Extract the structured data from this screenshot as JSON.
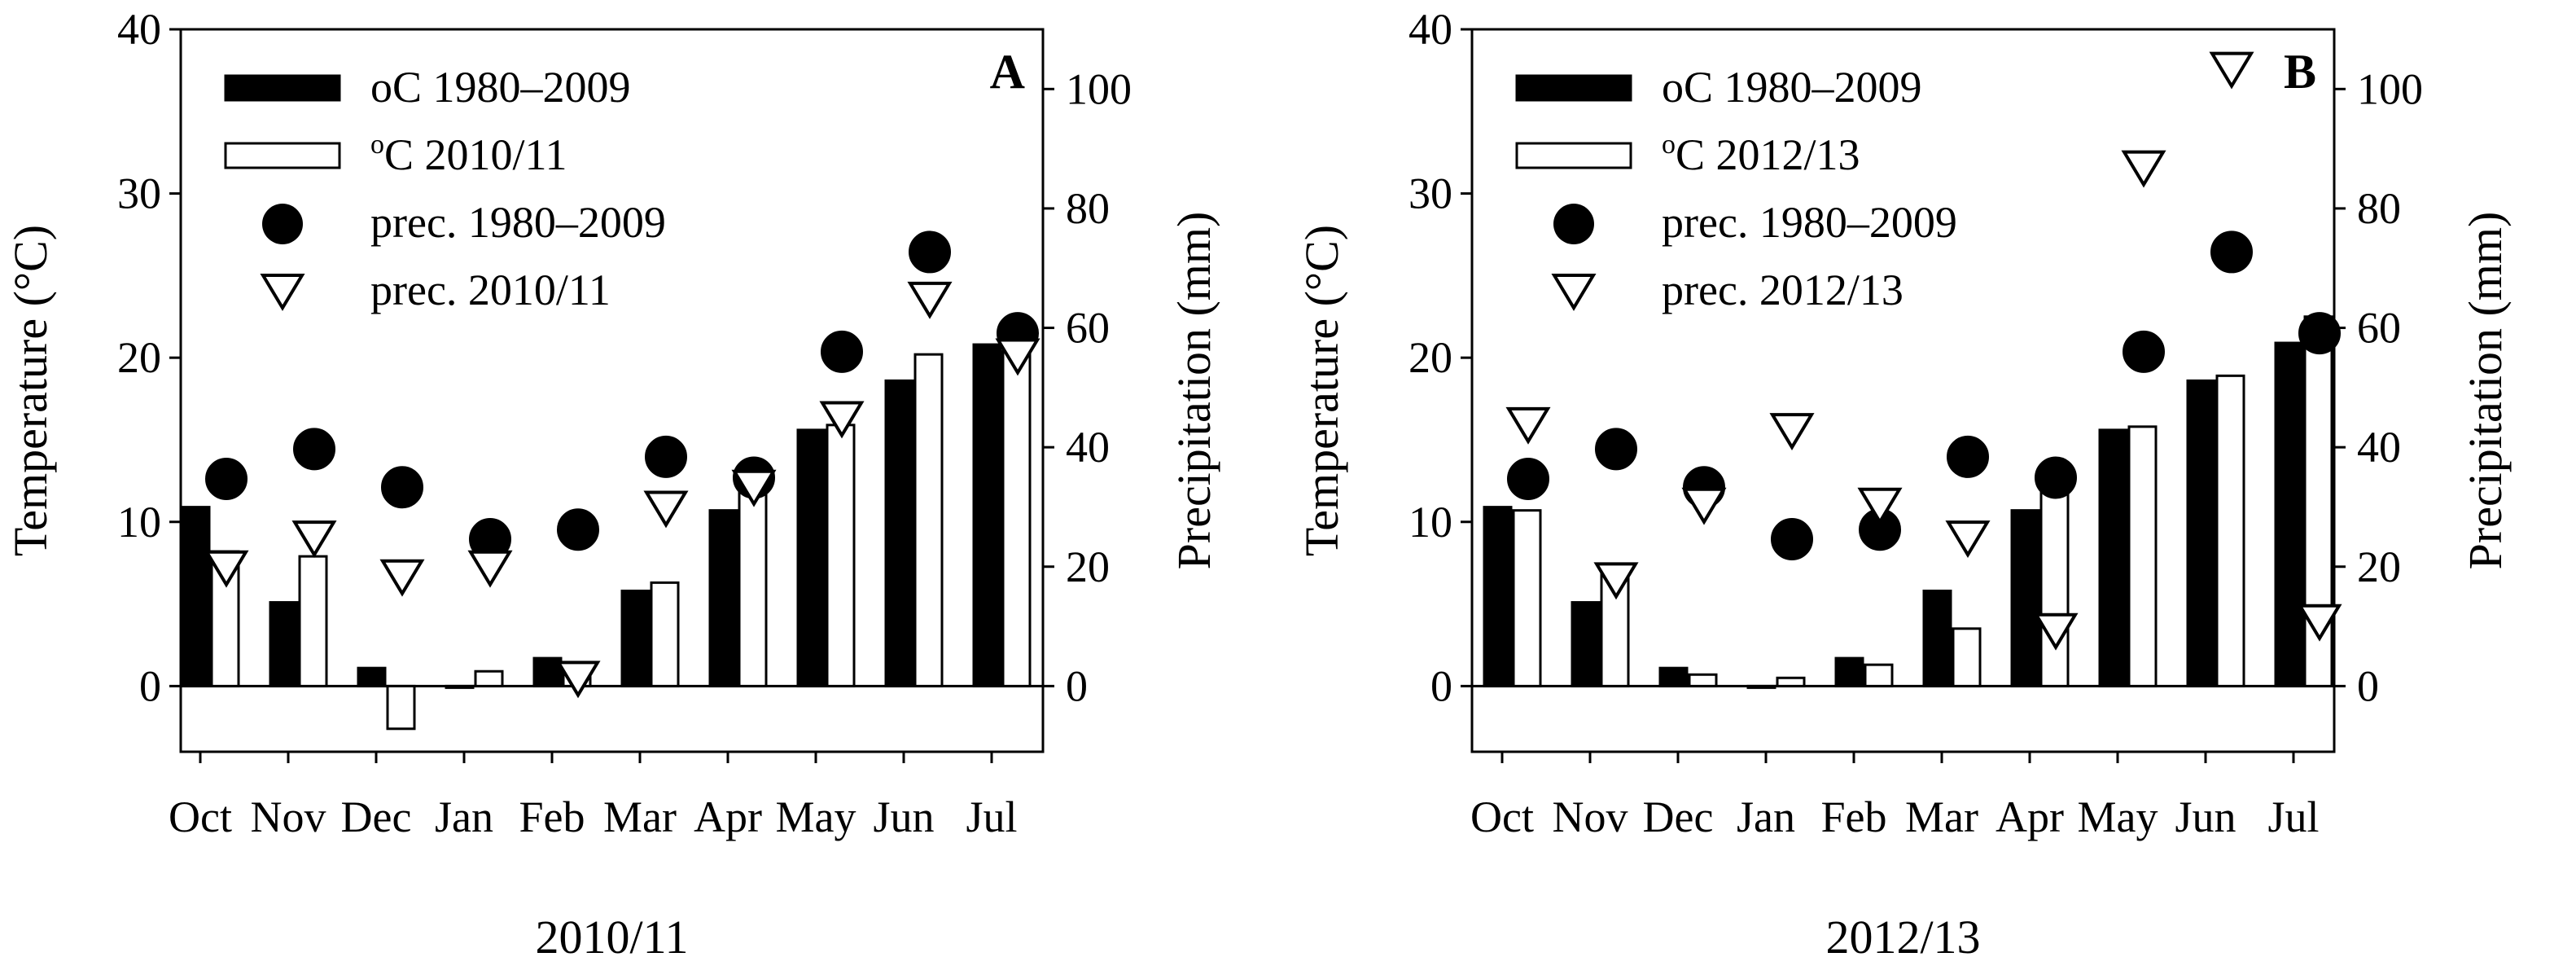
{
  "chart_data": [
    {
      "type": "bar",
      "panel_label": "A",
      "xlabel": "2010/11",
      "ylabel": "Temperature (°C)",
      "y2label": "Precipitation (mm)",
      "ylim": [
        -4,
        40
      ],
      "y2lim": [
        -11,
        110
      ],
      "yticks": [
        "0",
        "10",
        "20",
        "30",
        "40"
      ],
      "y2ticks": [
        "0",
        "20",
        "40",
        "60",
        "80",
        "100"
      ],
      "categories": [
        "Oct",
        "Nov",
        "Dec",
        "Jan",
        "Feb",
        "Mar",
        "Apr",
        "May",
        "Jun",
        "Jul"
      ],
      "series": [
        {
          "name": "oC 1980–2009",
          "kind": "bar",
          "axis": "left",
          "color": "#000000",
          "values": [
            10.9,
            5.1,
            1.1,
            0.0,
            1.7,
            5.8,
            10.7,
            15.6,
            18.6,
            20.8
          ]
        },
        {
          "name": "oC 2010/11",
          "name_sup": "o",
          "name_rest": "C 2010/11",
          "kind": "bar",
          "axis": "left",
          "color": "#ffffff",
          "values": [
            8.2,
            7.9,
            -2.6,
            0.9,
            1.4,
            6.3,
            13.3,
            15.9,
            20.2,
            20.4
          ]
        },
        {
          "name": "prec. 1980–2009",
          "kind": "circle",
          "axis": "right",
          "color": "#000000",
          "values": [
            34.7,
            39.7,
            33.3,
            24.6,
            26.2,
            38.4,
            34.9,
            56.0,
            72.7,
            59.1
          ]
        },
        {
          "name": "prec. 2010/11",
          "kind": "triangle",
          "axis": "right",
          "color": "#ffffff",
          "values": [
            20.0,
            25.0,
            18.5,
            20.0,
            1.5,
            30.0,
            33.5,
            45.0,
            65.0,
            55.5
          ]
        }
      ]
    },
    {
      "type": "bar",
      "panel_label": "B",
      "xlabel": "2012/13",
      "ylabel": "Temperature (°C)",
      "y2label": "Precipitation (mm)",
      "ylim": [
        -4,
        40
      ],
      "y2lim": [
        -11,
        110
      ],
      "yticks": [
        "0",
        "10",
        "20",
        "30",
        "40"
      ],
      "y2ticks": [
        "0",
        "20",
        "40",
        "60",
        "80",
        "100"
      ],
      "categories": [
        "Oct",
        "Nov",
        "Dec",
        "Jan",
        "Feb",
        "Mar",
        "Apr",
        "May",
        "Jun",
        "Jul"
      ],
      "series": [
        {
          "name": "oC 1980–2009",
          "kind": "bar",
          "axis": "left",
          "color": "#000000",
          "values": [
            10.9,
            5.1,
            1.1,
            0.0,
            1.7,
            5.8,
            10.7,
            15.6,
            18.6,
            20.9
          ]
        },
        {
          "name": "oC 2012/13",
          "name_sup": "o",
          "name_rest": "C 2012/13",
          "kind": "bar",
          "axis": "left",
          "color": "#ffffff",
          "values": [
            10.7,
            7.3,
            0.7,
            0.5,
            1.3,
            3.5,
            11.9,
            15.8,
            18.9,
            22.5
          ]
        },
        {
          "name": "prec. 1980–2009",
          "kind": "circle",
          "axis": "right",
          "color": "#000000",
          "values": [
            34.7,
            39.7,
            33.3,
            24.6,
            26.2,
            38.4,
            34.9,
            56.0,
            72.7,
            59.1
          ]
        },
        {
          "name": "prec. 2012/13",
          "kind": "triangle",
          "axis": "right",
          "color": "#ffffff",
          "values": [
            44.0,
            18.0,
            30.5,
            43.0,
            30.5,
            25.0,
            9.5,
            87.0,
            103.5,
            11.0
          ]
        }
      ]
    }
  ]
}
